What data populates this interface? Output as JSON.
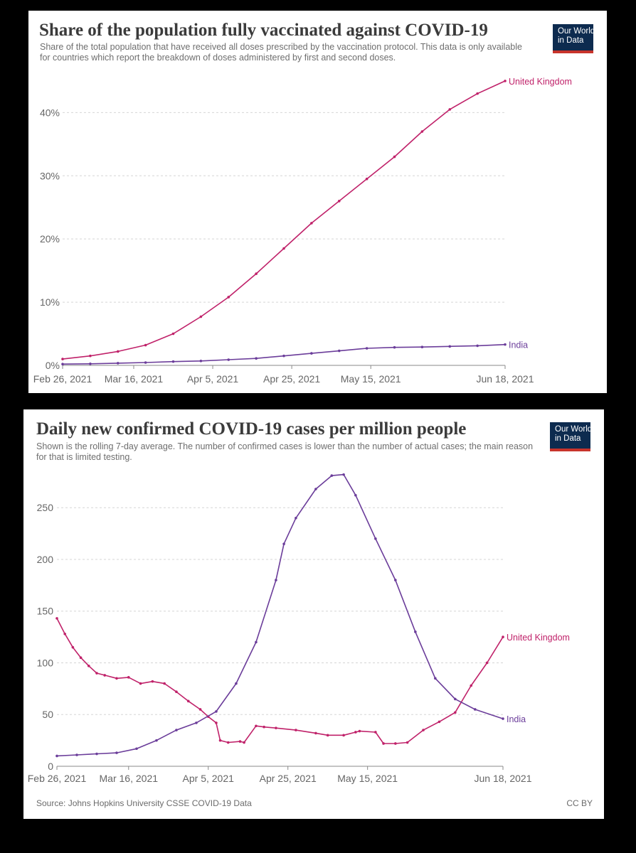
{
  "colors": {
    "united_kingdom": "#c0226a",
    "india": "#6b3d9a",
    "grid": "#d5d5d5",
    "logo_bg": "#0d2b4f",
    "logo_bar": "#c8342c"
  },
  "logo": {
    "line1": "Our World",
    "line2": "in Data"
  },
  "chart_data": [
    {
      "type": "line",
      "title": "Share of the population fully vaccinated against COVID-19",
      "subtitle": "Share of the total population that have received all doses prescribed by the vaccination protocol. This data is only available for countries which report the breakdown of doses administered by first and second doses.",
      "x_tick_labels": [
        "Feb 26, 2021",
        "Mar 16, 2021",
        "Apr 5, 2021",
        "Apr 25, 2021",
        "May 15, 2021",
        "Jun 18, 2021"
      ],
      "x_tick_days": [
        0,
        18,
        38,
        58,
        78,
        112
      ],
      "y_tick_labels": [
        "0%",
        "10%",
        "20%",
        "30%",
        "40%"
      ],
      "y_tick_values": [
        0,
        10,
        20,
        30,
        40
      ],
      "ylim": [
        0,
        46
      ],
      "x_range_days": [
        0,
        112
      ],
      "series": [
        {
          "name": "United Kingdom",
          "label": "United Kingdom",
          "color_key": "united_kingdom",
          "x": [
            0,
            7,
            14,
            21,
            28,
            35,
            42,
            49,
            56,
            63,
            70,
            77,
            84,
            91,
            98,
            105,
            112
          ],
          "values": [
            1.0,
            1.5,
            2.2,
            3.2,
            5.0,
            7.7,
            10.8,
            14.5,
            18.5,
            22.5,
            26.0,
            29.5,
            33.0,
            37.0,
            40.5,
            43.0,
            45.0
          ]
        },
        {
          "name": "India",
          "label": "India",
          "color_key": "india",
          "x": [
            0,
            7,
            14,
            21,
            28,
            35,
            42,
            49,
            56,
            63,
            70,
            77,
            84,
            91,
            98,
            105,
            112
          ],
          "values": [
            0.2,
            0.25,
            0.35,
            0.45,
            0.6,
            0.7,
            0.9,
            1.1,
            1.5,
            1.9,
            2.3,
            2.7,
            2.85,
            2.9,
            3.0,
            3.1,
            3.3
          ]
        }
      ]
    },
    {
      "type": "line",
      "title": "Daily new confirmed COVID-19 cases per million people",
      "subtitle": "Shown is the rolling 7-day average. The number of confirmed cases is lower than the number of actual cases; the main reason for that is limited testing.",
      "x_tick_labels": [
        "Feb 26, 2021",
        "Mar 16, 2021",
        "Apr 5, 2021",
        "Apr 25, 2021",
        "May 15, 2021",
        "Jun 18, 2021"
      ],
      "x_tick_days": [
        0,
        18,
        38,
        58,
        78,
        112
      ],
      "y_tick_labels": [
        "0",
        "50",
        "100",
        "150",
        "200",
        "250"
      ],
      "y_tick_values": [
        0,
        50,
        100,
        150,
        200,
        250
      ],
      "ylim": [
        0,
        290
      ],
      "x_range_days": [
        0,
        112
      ],
      "series": [
        {
          "name": "United Kingdom",
          "label": "United Kingdom",
          "color_key": "united_kingdom",
          "x": [
            0,
            2,
            4,
            6,
            8,
            10,
            12,
            15,
            18,
            21,
            24,
            27,
            30,
            33,
            36,
            38,
            40,
            41,
            43,
            46,
            47,
            50,
            52,
            55,
            60,
            65,
            68,
            72,
            75,
            76,
            80,
            82,
            85,
            88,
            92,
            96,
            100,
            104,
            108,
            112
          ],
          "values": [
            143,
            128,
            115,
            105,
            97,
            90,
            88,
            85,
            86,
            80,
            82,
            80,
            72,
            63,
            55,
            48,
            42,
            25,
            23,
            24,
            23,
            39,
            38,
            37,
            35,
            32,
            30,
            30,
            33,
            34,
            33,
            22,
            22,
            23,
            35,
            43,
            52,
            78,
            100,
            125
          ]
        },
        {
          "name": "India",
          "label": "India",
          "color_key": "india",
          "x": [
            0,
            5,
            10,
            15,
            20,
            25,
            30,
            35,
            40,
            45,
            50,
            55,
            57,
            60,
            65,
            69,
            72,
            75,
            80,
            85,
            90,
            95,
            100,
            105,
            112
          ],
          "values": [
            10,
            11,
            12,
            13,
            17,
            25,
            35,
            42,
            53,
            80,
            120,
            180,
            215,
            240,
            268,
            281,
            282,
            262,
            220,
            180,
            130,
            85,
            65,
            55,
            46
          ]
        }
      ]
    }
  ],
  "footer": {
    "source": "Source: Johns Hopkins University CSSE COVID-19 Data",
    "license": "CC BY"
  }
}
